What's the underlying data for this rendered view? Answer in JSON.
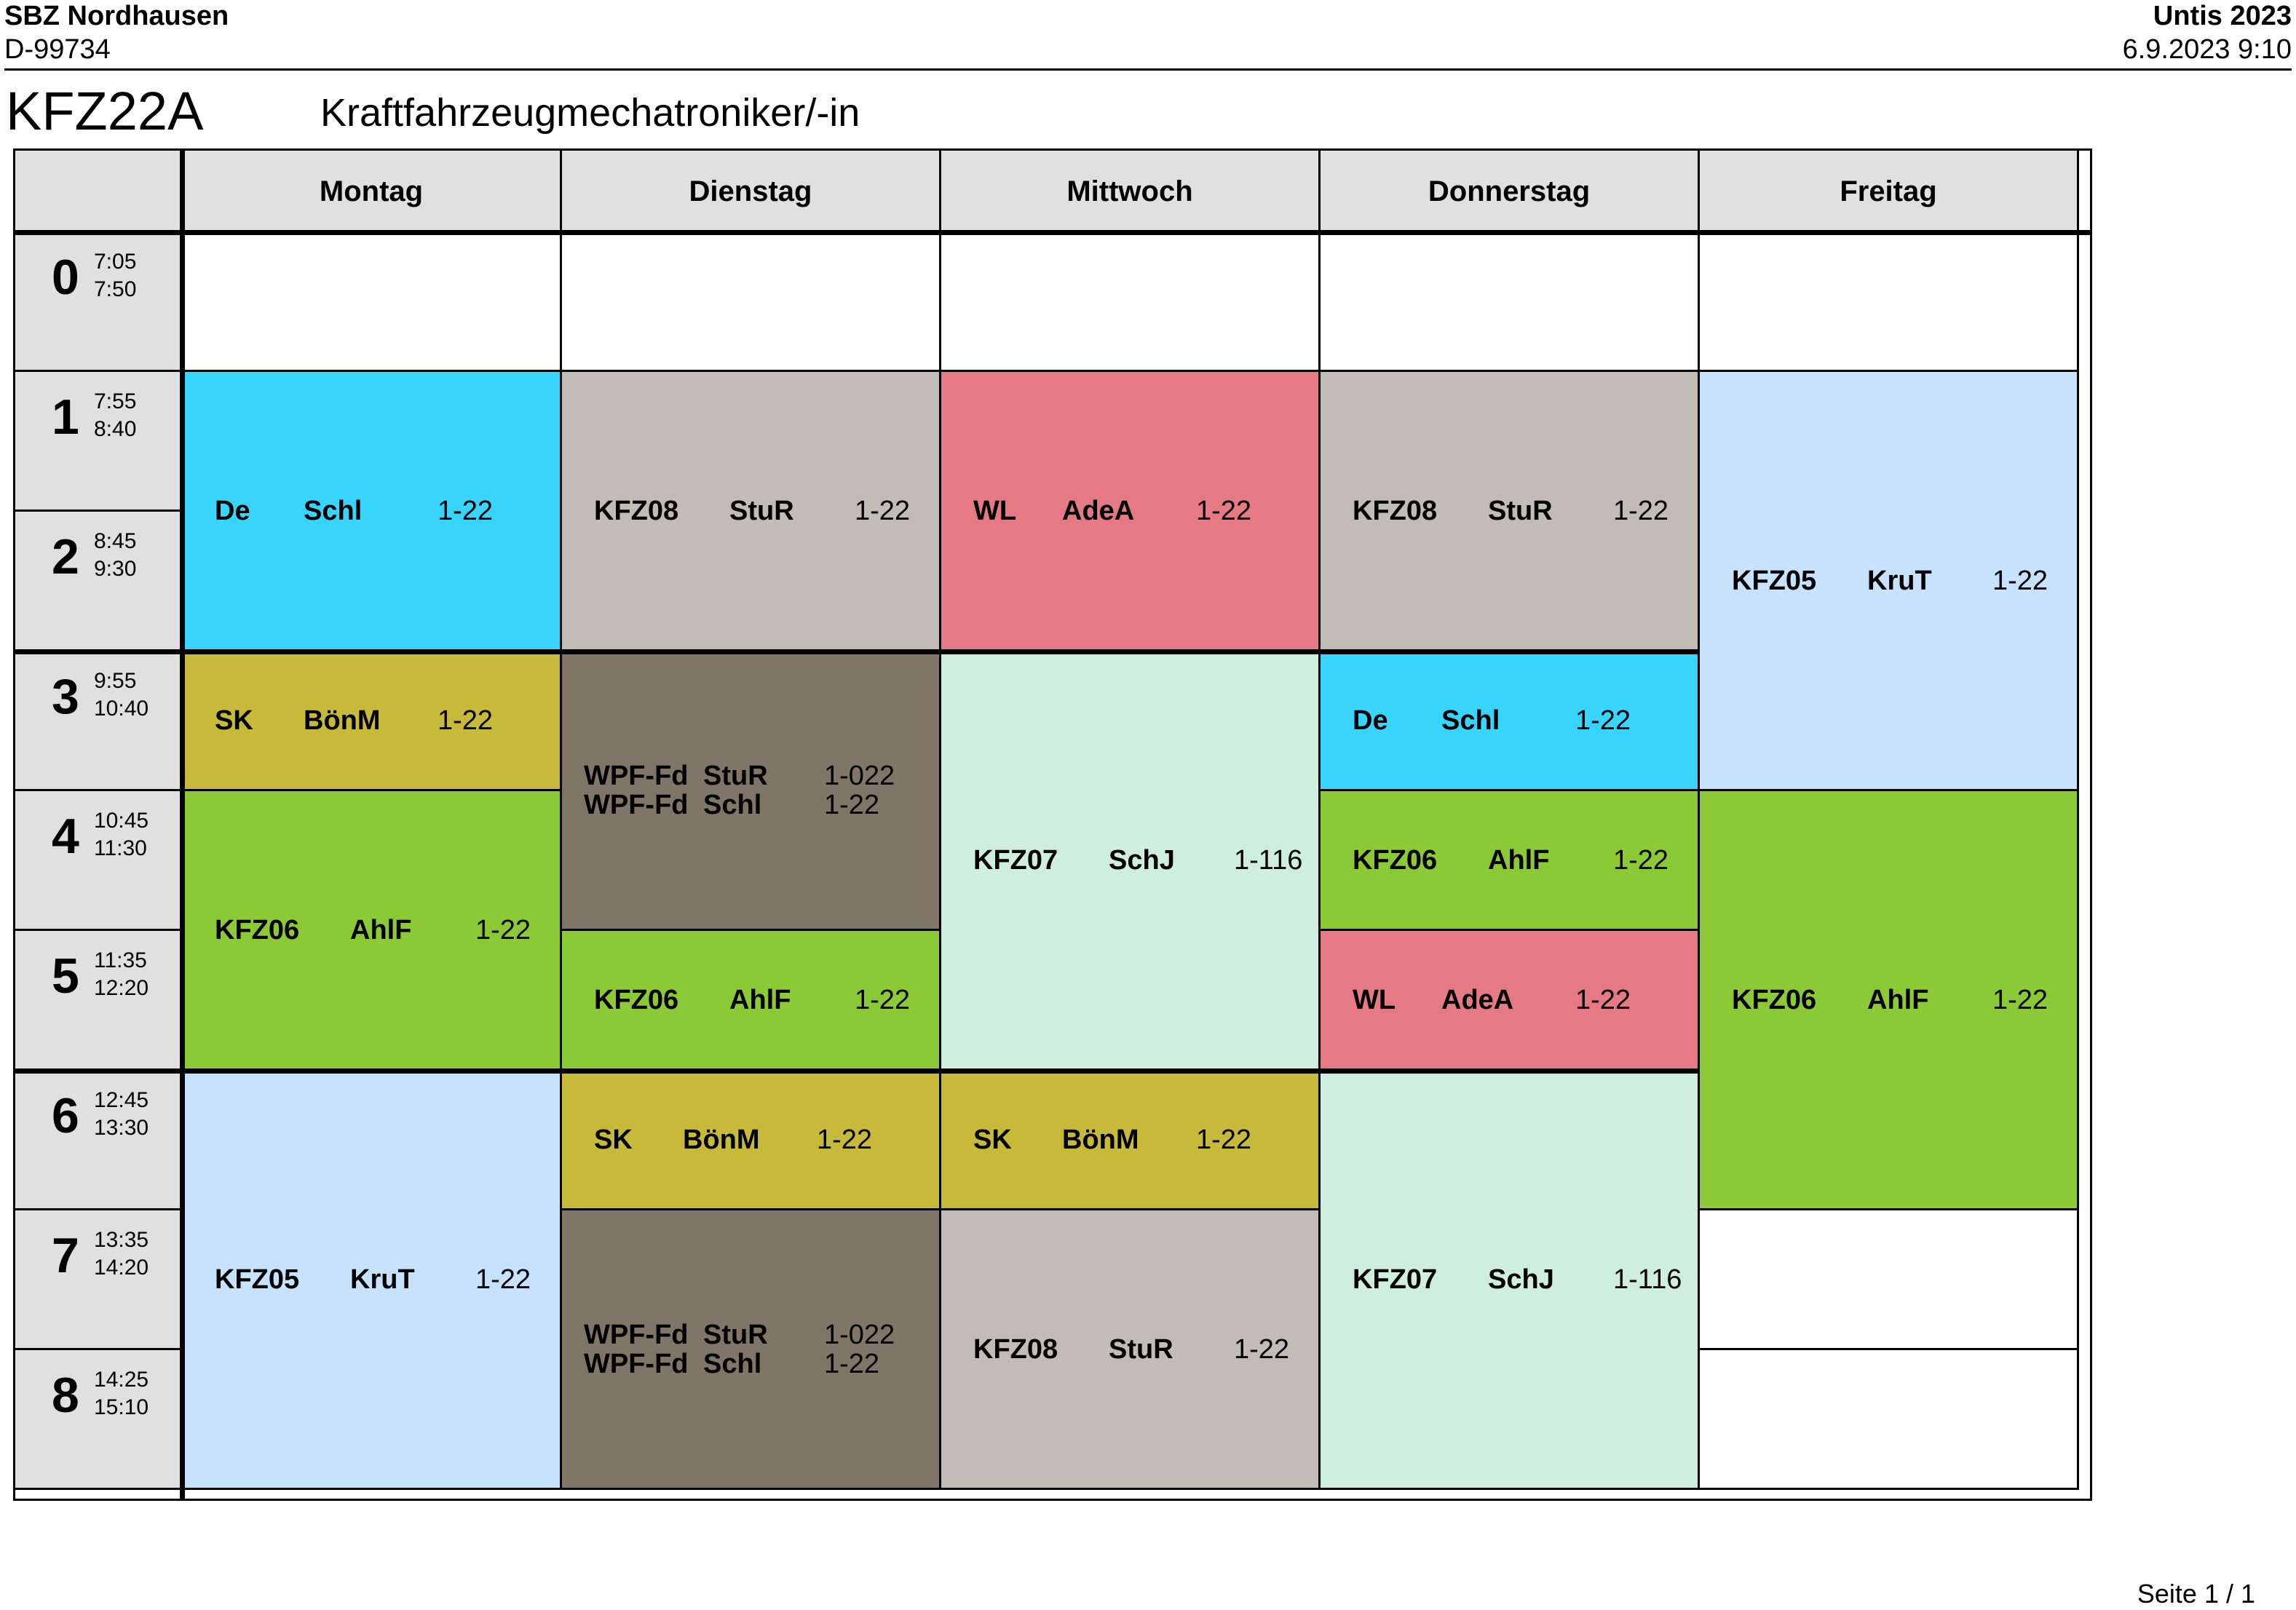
{
  "header": {
    "school": "SBZ Nordhausen",
    "school_id": "D-99734",
    "app": "Untis 2023",
    "timestamp": "6.9.2023  9:10"
  },
  "class": {
    "code": "KFZ22A",
    "title": "Kraftfahrzeugmechatroniker/-in"
  },
  "days": [
    "Montag",
    "Dienstag",
    "Mittwoch",
    "Donnerstag",
    "Freitag"
  ],
  "periods": [
    {
      "num": "0",
      "start": "7:05",
      "end": "7:50"
    },
    {
      "num": "1",
      "start": "7:55",
      "end": "8:40"
    },
    {
      "num": "2",
      "start": "8:45",
      "end": "9:30"
    },
    {
      "num": "3",
      "start": "9:55",
      "end": "10:40"
    },
    {
      "num": "4",
      "start": "10:45",
      "end": "11:30"
    },
    {
      "num": "5",
      "start": "11:35",
      "end": "12:20"
    },
    {
      "num": "6",
      "start": "12:45",
      "end": "13:30"
    },
    {
      "num": "7",
      "start": "13:35",
      "end": "14:20"
    },
    {
      "num": "8",
      "start": "14:25",
      "end": "15:10"
    }
  ],
  "colors": {
    "De": "#38d4fc",
    "KFZ08": "#c2bcb6",
    "WL": "#e57a84",
    "KFZ05": "#c6e2fc",
    "SK": "#c7ba3b",
    "WPF-Fd": "#807668",
    "KFZ07": "#ceeedf",
    "KFZ06": "#8cc936"
  },
  "lessons": [
    {
      "day": 0,
      "start": 1,
      "span": 2,
      "color": "De",
      "rows": [
        {
          "subject": "De",
          "teacher": "Schl",
          "room": "1-22"
        }
      ]
    },
    {
      "day": 0,
      "start": 3,
      "span": 1,
      "color": "SK",
      "rows": [
        {
          "subject": "SK",
          "teacher": "BönM",
          "room": "1-22"
        }
      ]
    },
    {
      "day": 0,
      "start": 4,
      "span": 2,
      "color": "KFZ06",
      "rows": [
        {
          "subject": "KFZ06",
          "teacher": "AhlF",
          "room": "1-22"
        }
      ]
    },
    {
      "day": 0,
      "start": 6,
      "span": 3,
      "color": "KFZ05",
      "rows": [
        {
          "subject": "KFZ05",
          "teacher": "KruT",
          "room": "1-22"
        }
      ]
    },
    {
      "day": 1,
      "start": 1,
      "span": 2,
      "color": "KFZ08",
      "rows": [
        {
          "subject": "KFZ08",
          "teacher": "StuR",
          "room": "1-22"
        }
      ]
    },
    {
      "day": 1,
      "start": 3,
      "span": 2,
      "color": "WPF-Fd",
      "rows": [
        {
          "subject": "WPF-Fd",
          "teacher": "StuR",
          "room": "1-022"
        },
        {
          "subject": "WPF-Fd",
          "teacher": "Schl",
          "room": "1-22"
        }
      ]
    },
    {
      "day": 1,
      "start": 5,
      "span": 1,
      "color": "KFZ06",
      "rows": [
        {
          "subject": "KFZ06",
          "teacher": "AhlF",
          "room": "1-22"
        }
      ]
    },
    {
      "day": 1,
      "start": 6,
      "span": 1,
      "color": "SK",
      "rows": [
        {
          "subject": "SK",
          "teacher": "BönM",
          "room": "1-22"
        }
      ]
    },
    {
      "day": 1,
      "start": 7,
      "span": 2,
      "color": "WPF-Fd",
      "rows": [
        {
          "subject": "WPF-Fd",
          "teacher": "StuR",
          "room": "1-022"
        },
        {
          "subject": "WPF-Fd",
          "teacher": "Schl",
          "room": "1-22"
        }
      ]
    },
    {
      "day": 2,
      "start": 1,
      "span": 2,
      "color": "WL",
      "rows": [
        {
          "subject": "WL",
          "teacher": "AdeA",
          "room": "1-22"
        }
      ]
    },
    {
      "day": 2,
      "start": 3,
      "span": 3,
      "color": "KFZ07",
      "rows": [
        {
          "subject": "KFZ07",
          "teacher": "SchJ",
          "room": "1-116"
        }
      ]
    },
    {
      "day": 2,
      "start": 6,
      "span": 1,
      "color": "SK",
      "rows": [
        {
          "subject": "SK",
          "teacher": "BönM",
          "room": "1-22"
        }
      ]
    },
    {
      "day": 2,
      "start": 7,
      "span": 2,
      "color": "KFZ08",
      "rows": [
        {
          "subject": "KFZ08",
          "teacher": "StuR",
          "room": "1-22"
        }
      ]
    },
    {
      "day": 3,
      "start": 1,
      "span": 2,
      "color": "KFZ08",
      "rows": [
        {
          "subject": "KFZ08",
          "teacher": "StuR",
          "room": "1-22"
        }
      ]
    },
    {
      "day": 3,
      "start": 3,
      "span": 1,
      "color": "De",
      "rows": [
        {
          "subject": "De",
          "teacher": "Schl",
          "room": "1-22"
        }
      ]
    },
    {
      "day": 3,
      "start": 4,
      "span": 1,
      "color": "KFZ06",
      "rows": [
        {
          "subject": "KFZ06",
          "teacher": "AhlF",
          "room": "1-22"
        }
      ]
    },
    {
      "day": 3,
      "start": 5,
      "span": 1,
      "color": "WL",
      "rows": [
        {
          "subject": "WL",
          "teacher": "AdeA",
          "room": "1-22"
        }
      ]
    },
    {
      "day": 3,
      "start": 6,
      "span": 3,
      "color": "KFZ07",
      "rows": [
        {
          "subject": "KFZ07",
          "teacher": "SchJ",
          "room": "1-116"
        }
      ]
    },
    {
      "day": 4,
      "start": 1,
      "span": 3,
      "color": "KFZ05",
      "rows": [
        {
          "subject": "KFZ05",
          "teacher": "KruT",
          "room": "1-22"
        }
      ]
    },
    {
      "day": 4,
      "start": 4,
      "span": 3,
      "color": "KFZ06",
      "rows": [
        {
          "subject": "KFZ06",
          "teacher": "AhlF",
          "room": "1-22"
        }
      ]
    }
  ],
  "empty_cells": [
    {
      "day": 0,
      "period": 0
    },
    {
      "day": 1,
      "period": 0
    },
    {
      "day": 2,
      "period": 0
    },
    {
      "day": 3,
      "period": 0
    },
    {
      "day": 4,
      "period": 0
    },
    {
      "day": 4,
      "period": 7
    },
    {
      "day": 4,
      "period": 8
    }
  ],
  "footer": {
    "page": "Seite 1 / 1"
  }
}
